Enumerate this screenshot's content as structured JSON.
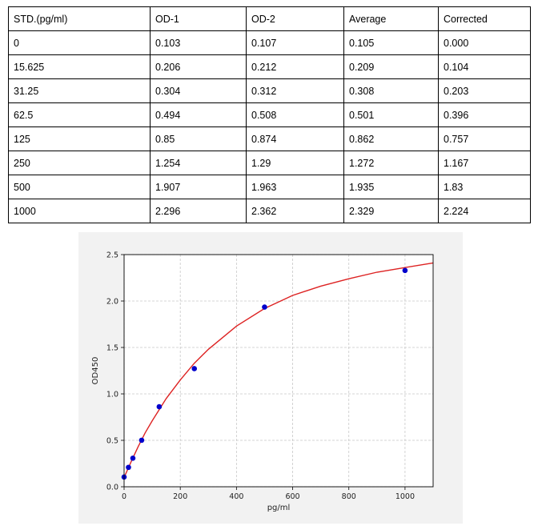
{
  "table": {
    "headers": [
      "STD.(pg/ml)",
      "OD-1",
      "OD-2",
      "Average",
      "Corrected"
    ],
    "rows": [
      [
        "0",
        "0.103",
        "0.107",
        "0.105",
        "0.000"
      ],
      [
        "15.625",
        "0.206",
        "0.212",
        "0.209",
        "0.104"
      ],
      [
        "31.25",
        "0.304",
        "0.312",
        "0.308",
        "0.203"
      ],
      [
        "62.5",
        "0.494",
        "0.508",
        "0.501",
        "0.396"
      ],
      [
        "125",
        "0.85",
        "0.874",
        "0.862",
        "0.757"
      ],
      [
        "250",
        "1.254",
        "1.29",
        "1.272",
        "1.167"
      ],
      [
        "500",
        "1.907",
        "1.963",
        "1.935",
        "1.83"
      ],
      [
        "1000",
        "2.296",
        "2.362",
        "2.329",
        "2.224"
      ]
    ]
  },
  "chart_data": {
    "type": "scatter",
    "title": "",
    "xlabel": "pg/ml",
    "ylabel": "OD450",
    "xlim": [
      0,
      1100
    ],
    "ylim": [
      0,
      2.5
    ],
    "xticks": [
      "0",
      "200",
      "400",
      "600",
      "800",
      "1000"
    ],
    "yticks": [
      "0.0",
      "0.5",
      "1.0",
      "1.5",
      "2.0",
      "2.5"
    ],
    "grid": true,
    "legend": "none",
    "series": [
      {
        "type": "scatter",
        "x": [
          0,
          15.625,
          31.25,
          62.5,
          125,
          250,
          500,
          1000
        ],
        "y": [
          0.105,
          0.209,
          0.308,
          0.501,
          0.862,
          1.272,
          1.935,
          2.329
        ],
        "color": "#0000cc"
      },
      {
        "type": "line",
        "x": [
          0,
          25,
          50,
          75,
          100,
          150,
          200,
          250,
          300,
          400,
          500,
          600,
          700,
          800,
          900,
          1000,
          1100
        ],
        "y": [
          0.1,
          0.27,
          0.43,
          0.58,
          0.71,
          0.95,
          1.15,
          1.33,
          1.48,
          1.73,
          1.92,
          2.06,
          2.16,
          2.24,
          2.31,
          2.36,
          2.41
        ],
        "color": "#dd2222"
      }
    ],
    "colors": {
      "panel": "#f2f2f2",
      "plot": "#ffffff",
      "grid": "#c8c8c8",
      "axis": "#000000"
    }
  }
}
